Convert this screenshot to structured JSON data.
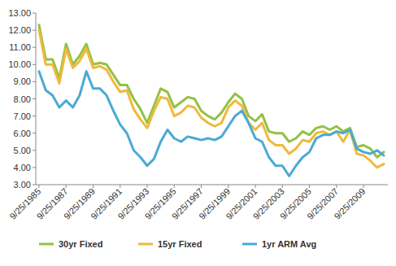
{
  "chart_data": {
    "type": "line",
    "categories": [
      "9/25/1985",
      null,
      null,
      null,
      "9/25/1987",
      null,
      null,
      null,
      "9/25/1989",
      null,
      null,
      null,
      "9/25/1991",
      null,
      null,
      null,
      "9/25/1993",
      null,
      null,
      null,
      "9/25/1995",
      null,
      null,
      null,
      "9/25/1997",
      null,
      null,
      null,
      "9/25/1999",
      null,
      null,
      null,
      "9/25/2001",
      null,
      null,
      null,
      "9/25/2003",
      null,
      null,
      null,
      "9/25/2005",
      null,
      null,
      null,
      "9/25/2007",
      null,
      null,
      null,
      "9/25/2009",
      null,
      null,
      null
    ],
    "series": [
      {
        "name": "30yr Fixed",
        "color": "#92c241",
        "values": [
          12.3,
          10.3,
          10.3,
          9.2,
          11.2,
          10.0,
          10.5,
          11.2,
          10.0,
          10.1,
          10.0,
          9.4,
          8.8,
          8.8,
          8.0,
          7.4,
          6.6,
          7.6,
          8.6,
          8.4,
          7.5,
          7.8,
          8.1,
          8.0,
          7.3,
          7.0,
          6.8,
          7.2,
          7.8,
          8.3,
          8.0,
          7.0,
          6.7,
          7.1,
          6.1,
          6.0,
          6.0,
          5.5,
          5.7,
          6.1,
          5.9,
          6.3,
          6.4,
          6.2,
          6.4,
          6.1,
          6.3,
          5.2,
          5.3,
          5.1,
          4.6,
          4.9
        ]
      },
      {
        "name": "15yr Fixed",
        "color": "#f0b93d",
        "values": [
          12.0,
          10.0,
          10.0,
          8.9,
          10.9,
          9.8,
          10.2,
          10.9,
          9.8,
          9.9,
          9.7,
          9.0,
          8.4,
          8.5,
          7.4,
          6.8,
          6.3,
          7.3,
          8.1,
          8.0,
          7.0,
          7.2,
          7.6,
          7.5,
          6.9,
          6.6,
          6.4,
          6.6,
          7.5,
          7.9,
          7.6,
          6.6,
          6.2,
          6.6,
          5.6,
          5.3,
          5.3,
          4.8,
          5.1,
          5.6,
          5.5,
          6.0,
          6.1,
          5.9,
          6.1,
          5.5,
          6.2,
          4.8,
          4.7,
          4.4,
          4.0,
          4.2
        ]
      },
      {
        "name": "1yr ARM Avg",
        "color": "#4aaad5",
        "values": [
          9.6,
          8.5,
          8.2,
          7.5,
          7.9,
          7.5,
          8.2,
          9.6,
          8.6,
          8.6,
          8.2,
          7.3,
          6.5,
          6.0,
          5.0,
          4.6,
          4.1,
          4.5,
          5.5,
          6.2,
          5.7,
          5.5,
          5.8,
          5.7,
          5.6,
          5.7,
          5.6,
          5.8,
          6.4,
          7.0,
          7.3,
          6.6,
          5.7,
          5.5,
          4.6,
          4.1,
          4.1,
          3.5,
          4.1,
          4.6,
          4.9,
          5.7,
          5.9,
          5.9,
          6.1,
          6.0,
          6.2,
          5.1,
          4.9,
          4.8,
          5.0,
          4.7
        ]
      }
    ],
    "ylim": [
      3,
      13
    ],
    "yticks": [
      {
        "value": 3,
        "label": "3.00"
      },
      {
        "value": 4,
        "label": "4.00"
      },
      {
        "value": 5,
        "label": "5.00"
      },
      {
        "value": 6,
        "label": "6.00"
      },
      {
        "value": 7,
        "label": "7.00"
      },
      {
        "value": 8,
        "label": "8.00"
      },
      {
        "value": 9,
        "label": "9.00"
      },
      {
        "value": 10,
        "label": "10.00"
      },
      {
        "value": 11,
        "label": "11.00"
      },
      {
        "value": 12,
        "label": "12.00"
      },
      {
        "value": 13,
        "label": "13.00"
      }
    ],
    "grid": false,
    "legend": "bottom"
  }
}
